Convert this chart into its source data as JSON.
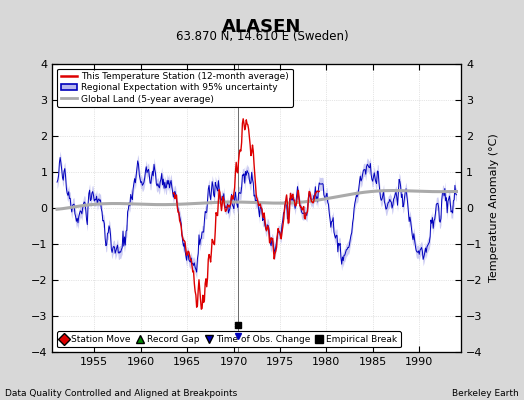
{
  "title": "ALASEN",
  "subtitle": "63.870 N, 14.610 E (Sweden)",
  "ylabel": "Temperature Anomaly (°C)",
  "xlabel_note": "Data Quality Controlled and Aligned at Breakpoints",
  "credit": "Berkeley Earth",
  "xlim": [
    1950.5,
    1994.5
  ],
  "ylim": [
    -4,
    4
  ],
  "yticks": [
    -4,
    -3,
    -2,
    -1,
    0,
    1,
    2,
    3,
    4
  ],
  "xticks": [
    1955,
    1960,
    1965,
    1970,
    1975,
    1980,
    1985,
    1990
  ],
  "bg_color": "#d8d8d8",
  "plot_bg_color": "#ffffff",
  "red_color": "#dd0000",
  "blue_color": "#0000bb",
  "blue_fill_color": "#b8b8ee",
  "gray_color": "#aaaaaa",
  "red_start": 1963.5,
  "red_end": 1979.3,
  "empirical_break_x": 1970.5,
  "obs_change_x": 1970.5,
  "legend_line_items": [
    {
      "label": "This Temperature Station (12-month average)",
      "color": "#dd0000",
      "lw": 1.5
    },
    {
      "label": "Regional Expectation with 95% uncertainty",
      "color": "#0000bb",
      "lw": 1.5,
      "fill": "#b8b8ee"
    },
    {
      "label": "Global Land (5-year average)",
      "color": "#aaaaaa",
      "lw": 2.0
    }
  ],
  "legend2_items": [
    {
      "label": "Station Move",
      "marker": "D",
      "color": "#dd0000"
    },
    {
      "label": "Record Gap",
      "marker": "^",
      "color": "#008800"
    },
    {
      "label": "Time of Obs. Change",
      "marker": "v",
      "color": "#0000bb"
    },
    {
      "label": "Empirical Break",
      "marker": "s",
      "color": "#000000"
    }
  ]
}
